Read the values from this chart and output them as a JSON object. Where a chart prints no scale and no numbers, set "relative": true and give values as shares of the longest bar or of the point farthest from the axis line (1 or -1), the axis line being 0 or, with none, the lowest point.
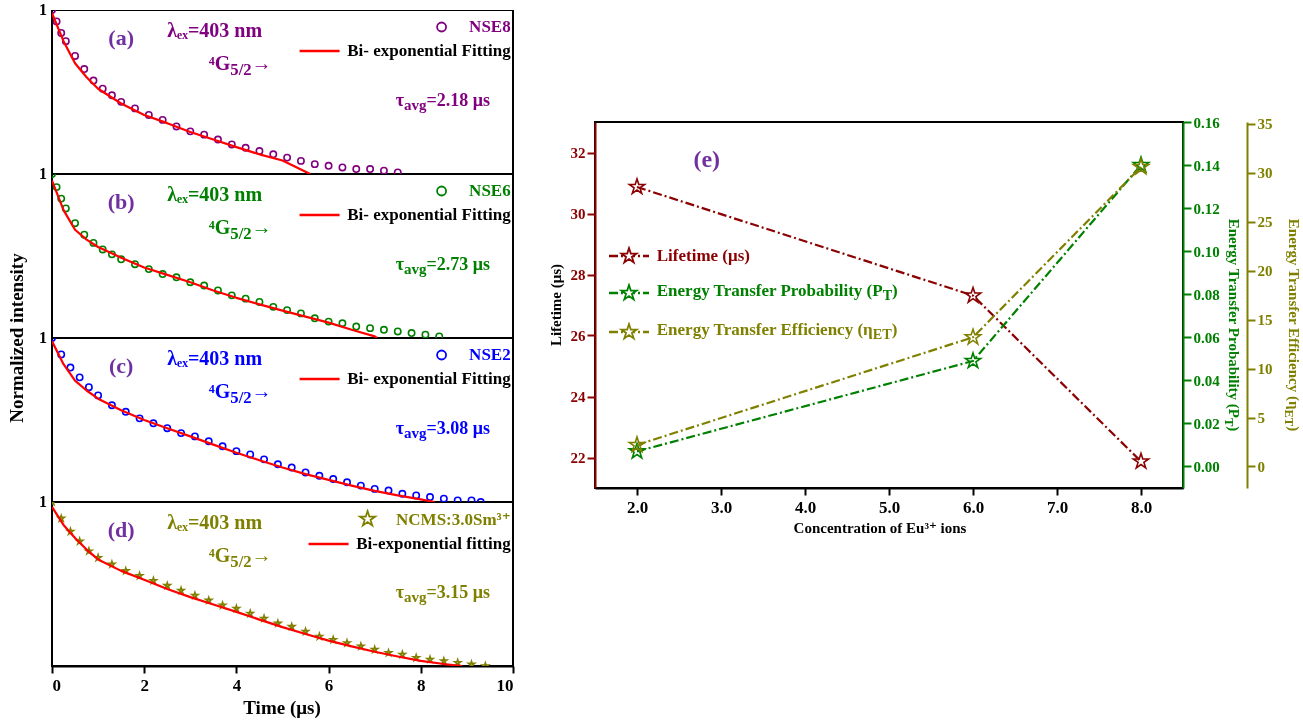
{
  "chart_data": [
    {
      "type": "scatter",
      "relative": true,
      "xlim": [
        0,
        10
      ],
      "xticks": [
        0,
        2,
        4,
        6,
        8,
        10
      ],
      "tick_labels": false,
      "legend": "top right",
      "ylabel": "Normalized intensity",
      "annotations": [
        "1",
        "(a)",
        "λₑₓ=403 nm",
        "⁴G$_{5/2}$→",
        "τ$_{avg}$=2.18 μs"
      ],
      "series": [
        {
          "name": "NSE8",
          "color": "#800080",
          "type": "scatter",
          "marker": "circle",
          "x": [
            0,
            0.1,
            0.2,
            0.3,
            0.5,
            0.7,
            0.9,
            1.1,
            1.3,
            1.5,
            1.8,
            2.1,
            2.4,
            2.7,
            3.0,
            3.3,
            3.6,
            3.9,
            4.2,
            4.5,
            4.8,
            5.1,
            5.4,
            5.7,
            6.0,
            6.3,
            6.6,
            6.9,
            7.2,
            7.5
          ],
          "values": [
            1.0,
            0.93,
            0.86,
            0.81,
            0.72,
            0.64,
            0.57,
            0.52,
            0.48,
            0.44,
            0.4,
            0.36,
            0.33,
            0.29,
            0.26,
            0.24,
            0.21,
            0.18,
            0.16,
            0.14,
            0.12,
            0.1,
            0.08,
            0.06,
            0.05,
            0.04,
            0.03,
            0.03,
            0.02,
            0.01
          ]
        },
        {
          "name": "Bi- exponential Fitting",
          "color": "#ff0000",
          "type": "line",
          "line_style": "solid",
          "x": [
            0,
            0.25,
            0.5,
            0.75,
            1,
            1.5,
            2,
            2.5,
            3,
            3.5,
            4,
            4.5,
            5,
            5.6
          ],
          "values": [
            0.98,
            0.81,
            0.675,
            0.59,
            0.52,
            0.43,
            0.36,
            0.31,
            0.256,
            0.21,
            0.164,
            0.12,
            0.082,
            0.0
          ]
        }
      ]
    },
    {
      "type": "scatter",
      "relative": true,
      "xlim": [
        0,
        10
      ],
      "xticks": [
        0,
        2,
        4,
        6,
        8,
        10
      ],
      "tick_labels": false,
      "legend": "top right",
      "annotations": [
        "1",
        "(b)",
        "λₑₓ=403 nm",
        "⁴G$_{5/2}$→",
        "τ$_{avg}$=2.73 μs"
      ],
      "series": [
        {
          "name": "NSE6",
          "color": "#008000",
          "type": "scatter",
          "marker": "circle",
          "x": [
            0,
            0.1,
            0.2,
            0.3,
            0.5,
            0.7,
            0.9,
            1.1,
            1.3,
            1.5,
            1.8,
            2.1,
            2.4,
            2.7,
            3.0,
            3.3,
            3.6,
            3.9,
            4.2,
            4.5,
            4.8,
            5.1,
            5.4,
            5.7,
            6.0,
            6.3,
            6.6,
            6.9,
            7.2,
            7.5,
            7.8,
            8.1,
            8.4
          ],
          "values": [
            1.0,
            0.92,
            0.85,
            0.79,
            0.7,
            0.63,
            0.58,
            0.54,
            0.51,
            0.48,
            0.45,
            0.42,
            0.39,
            0.37,
            0.34,
            0.32,
            0.29,
            0.26,
            0.24,
            0.22,
            0.19,
            0.17,
            0.15,
            0.12,
            0.1,
            0.09,
            0.07,
            0.06,
            0.05,
            0.04,
            0.03,
            0.02,
            0.01
          ]
        },
        {
          "name": "Bi- exponential Fitting",
          "color": "#ff0000",
          "type": "line",
          "line_style": "solid",
          "x": [
            0,
            0.25,
            0.5,
            0.75,
            1,
            1.5,
            2,
            2.5,
            3,
            3.5,
            4,
            4.5,
            5,
            5.5,
            6,
            6.5,
            7,
            7.05
          ],
          "values": [
            0.96,
            0.78,
            0.66,
            0.6,
            0.555,
            0.49,
            0.43,
            0.385,
            0.34,
            0.29,
            0.245,
            0.205,
            0.167,
            0.13,
            0.094,
            0.05,
            0.01,
            0.0
          ]
        }
      ]
    },
    {
      "type": "scatter",
      "relative": true,
      "xlim": [
        0,
        10
      ],
      "xticks": [
        0,
        2,
        4,
        6,
        8,
        10
      ],
      "tick_labels": false,
      "legend": "top right",
      "annotations": [
        "1",
        "(c)",
        "λₑₓ=403 nm",
        "⁴G$_{5/2}$→",
        "τ$_{avg}$=3.08 μs"
      ],
      "series": [
        {
          "name": "NSE2",
          "color": "#0000ff",
          "type": "scatter",
          "marker": "circle",
          "x": [
            0,
            0.2,
            0.4,
            0.6,
            0.8,
            1.0,
            1.3,
            1.6,
            1.9,
            2.2,
            2.5,
            2.8,
            3.1,
            3.4,
            3.7,
            4.0,
            4.3,
            4.6,
            4.9,
            5.2,
            5.5,
            5.8,
            6.1,
            6.4,
            6.7,
            7.0,
            7.3,
            7.6,
            7.9,
            8.2,
            8.5,
            8.8,
            9.1,
            9.3
          ],
          "values": [
            1.0,
            0.9,
            0.82,
            0.76,
            0.7,
            0.65,
            0.59,
            0.55,
            0.51,
            0.48,
            0.45,
            0.42,
            0.4,
            0.37,
            0.34,
            0.31,
            0.29,
            0.26,
            0.23,
            0.21,
            0.18,
            0.16,
            0.14,
            0.12,
            0.1,
            0.08,
            0.07,
            0.05,
            0.04,
            0.03,
            0.02,
            0.01,
            0.01,
            0.0
          ]
        },
        {
          "name": "Bi- exponential Fitting",
          "color": "#ff0000",
          "type": "line",
          "line_style": "solid",
          "x": [
            0,
            0.25,
            0.5,
            0.75,
            1,
            1.5,
            2,
            2.5,
            3,
            3.5,
            4,
            4.5,
            5,
            5.5,
            6,
            6.5,
            7,
            7.5,
            8,
            8.3
          ],
          "values": [
            0.98,
            0.84,
            0.74,
            0.68,
            0.63,
            0.56,
            0.5,
            0.45,
            0.4,
            0.35,
            0.3,
            0.255,
            0.21,
            0.17,
            0.135,
            0.1,
            0.068,
            0.04,
            0.016,
            0.0
          ]
        }
      ]
    },
    {
      "type": "scatter",
      "relative": true,
      "xlim": [
        0,
        10
      ],
      "xticks": [
        0,
        2,
        4,
        6,
        8,
        10
      ],
      "tick_labels": "x",
      "xlabel": "Time (μs)",
      "legend": "top right",
      "annotations": [
        "1",
        "(d)",
        "λₑₓ=403 nm",
        "⁴G$_{5/2}$→",
        "τ$_{avg}$=3.15 μs"
      ],
      "series": [
        {
          "name": "NCMS:3.0Sm³⁺",
          "color": "#808000",
          "type": "scatter",
          "marker": "star",
          "x": [
            0,
            0.2,
            0.4,
            0.6,
            0.8,
            1.0,
            1.3,
            1.6,
            1.9,
            2.2,
            2.5,
            2.8,
            3.1,
            3.4,
            3.7,
            4.0,
            4.3,
            4.6,
            4.9,
            5.2,
            5.5,
            5.8,
            6.1,
            6.4,
            6.7,
            7.0,
            7.3,
            7.6,
            7.9,
            8.2,
            8.5,
            8.8,
            9.1,
            9.4
          ],
          "values": [
            1.0,
            0.9,
            0.82,
            0.76,
            0.7,
            0.66,
            0.62,
            0.58,
            0.55,
            0.52,
            0.49,
            0.46,
            0.43,
            0.4,
            0.37,
            0.35,
            0.32,
            0.29,
            0.26,
            0.24,
            0.21,
            0.18,
            0.16,
            0.14,
            0.12,
            0.1,
            0.08,
            0.07,
            0.05,
            0.04,
            0.03,
            0.02,
            0.01,
            0.0
          ]
        },
        {
          "name": "Bi-exponential fitting",
          "color": "#ff0000",
          "type": "line",
          "line_style": "solid",
          "x": [
            0,
            0.25,
            0.5,
            0.75,
            1,
            1.5,
            2,
            2.5,
            3,
            3.5,
            4,
            4.5,
            5,
            5.5,
            6,
            6.5,
            7,
            7.5,
            8,
            8.5,
            8.9
          ],
          "values": [
            0.97,
            0.86,
            0.78,
            0.71,
            0.65,
            0.58,
            0.526,
            0.47,
            0.42,
            0.375,
            0.33,
            0.283,
            0.237,
            0.195,
            0.155,
            0.12,
            0.087,
            0.058,
            0.031,
            0.012,
            0.0
          ]
        }
      ]
    },
    {
      "type": "line",
      "xlabel": "Concentration of Eu³⁺ ions",
      "ylabel": "Lifetime (μs)",
      "y2label": "Energy Transfer Probability (P$_{T}$)",
      "y3label": "Energy Transfer Efficiency (η$_{ET}$)",
      "annotations": [
        "(e)"
      ],
      "legend": "left",
      "marker": "star",
      "line_style": "dashed",
      "xlim": [
        1.5,
        8.5
      ],
      "xticks": [
        {
          "value": 2,
          "label": "2.0"
        },
        {
          "value": 3,
          "label": "3.0"
        },
        {
          "value": 4,
          "label": "4.0"
        },
        {
          "value": 5,
          "label": "5.0"
        },
        {
          "value": 6,
          "label": "6.0"
        },
        {
          "value": 7,
          "label": "7.0"
        },
        {
          "value": 8,
          "label": "8.0"
        }
      ],
      "ylim": [
        21,
        33
      ],
      "yticks": [
        22,
        24,
        26,
        28,
        30,
        32
      ],
      "y2lim": [
        -0.01,
        0.16
      ],
      "y2ticks": [
        {
          "value": 0,
          "label": "0.00"
        },
        {
          "value": 0.02,
          "label": "0.02"
        },
        {
          "value": 0.04,
          "label": "0.04"
        },
        {
          "value": 0.06,
          "label": "0.06"
        },
        {
          "value": 0.08,
          "label": "0.08"
        },
        {
          "value": 0.1,
          "label": "0.10"
        },
        {
          "value": 0.12,
          "label": "0.12"
        },
        {
          "value": 0.14,
          "label": "0.14"
        },
        {
          "value": 0.16,
          "label": "0.16"
        }
      ],
      "y3lim": [
        -2.2,
        35.2
      ],
      "y3ticks": [
        0,
        5,
        10,
        15,
        20,
        25,
        30,
        35
      ],
      "x": [
        2,
        6,
        8
      ],
      "series": [
        {
          "name": "Lifetime (μs)",
          "color": "#8b0000",
          "values": [
            30.87,
            27.31,
            21.87
          ]
        },
        {
          "name": "Energy Transfer Probability (P$_{T}$)",
          "color": "#008000",
          "axis": "y2",
          "values": [
            0.007,
            0.049,
            0.14
          ]
        },
        {
          "name": "Energy Transfer Efficiency (η$_{ET}$)",
          "color": "#808000",
          "axis": "y3",
          "values": [
            2.2,
            13.2,
            30.6
          ]
        }
      ]
    }
  ]
}
